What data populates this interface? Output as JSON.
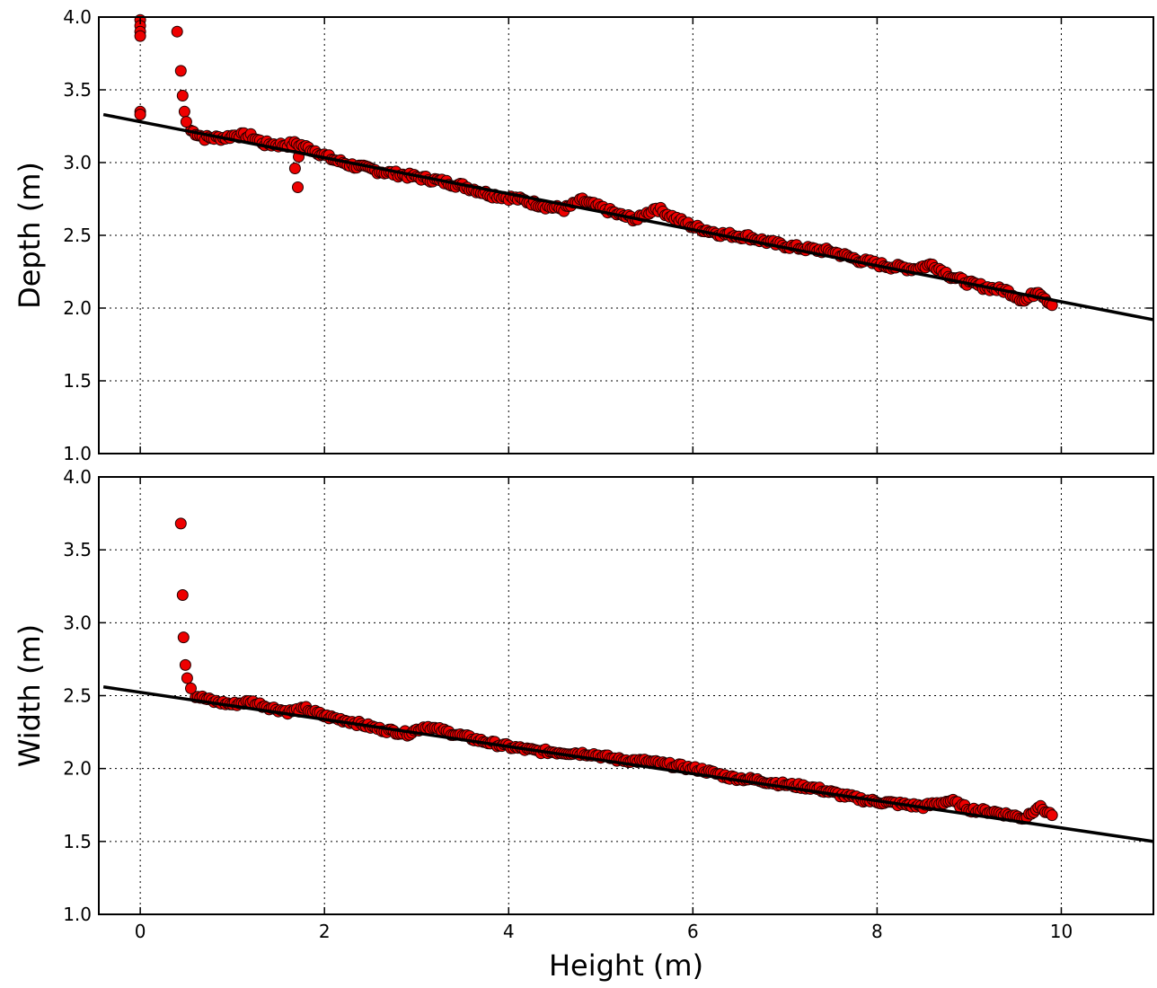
{
  "chart_data": [
    {
      "type": "scatter",
      "ylabel": "Depth (m)",
      "xlabel": "",
      "xlim": [
        -0.45,
        11.0
      ],
      "ylim": [
        1.0,
        4.0
      ],
      "xticks": [
        0,
        2,
        4,
        6,
        8,
        10
      ],
      "yticks": [
        1.0,
        1.5,
        2.0,
        2.5,
        3.0,
        3.5,
        4.0
      ],
      "show_xtick_labels": false,
      "grid": true,
      "marker_color": "#ee0000",
      "line_color": "#000000",
      "fit_line": {
        "x": [
          -0.4,
          11.0
        ],
        "y": [
          3.33,
          1.92
        ]
      },
      "outliers": [
        [
          0.0,
          3.98
        ],
        [
          0.0,
          3.94
        ],
        [
          0.0,
          3.9
        ],
        [
          0.0,
          3.87
        ],
        [
          0.0,
          3.35
        ],
        [
          0.0,
          3.33
        ],
        [
          0.4,
          3.9
        ],
        [
          0.44,
          3.63
        ],
        [
          0.46,
          3.46
        ],
        [
          0.48,
          3.35
        ],
        [
          0.5,
          3.28
        ],
        [
          1.68,
          2.96
        ],
        [
          1.71,
          2.83
        ],
        [
          1.72,
          3.04
        ]
      ],
      "trend": [
        [
          0.55,
          3.22
        ],
        [
          0.7,
          3.17
        ],
        [
          0.9,
          3.17
        ],
        [
          1.05,
          3.19
        ],
        [
          1.2,
          3.18
        ],
        [
          1.35,
          3.13
        ],
        [
          1.55,
          3.12
        ],
        [
          1.7,
          3.13
        ],
        [
          1.9,
          3.08
        ],
        [
          2.1,
          3.02
        ],
        [
          2.3,
          2.98
        ],
        [
          2.6,
          2.94
        ],
        [
          2.9,
          2.91
        ],
        [
          3.2,
          2.88
        ],
        [
          3.5,
          2.84
        ],
        [
          3.8,
          2.78
        ],
        [
          4.1,
          2.75
        ],
        [
          4.4,
          2.7
        ],
        [
          4.6,
          2.68
        ],
        [
          4.8,
          2.74
        ],
        [
          5.0,
          2.69
        ],
        [
          5.2,
          2.64
        ],
        [
          5.4,
          2.61
        ],
        [
          5.6,
          2.69
        ],
        [
          5.8,
          2.62
        ],
        [
          6.0,
          2.56
        ],
        [
          6.3,
          2.51
        ],
        [
          6.6,
          2.49
        ],
        [
          6.9,
          2.44
        ],
        [
          7.2,
          2.41
        ],
        [
          7.5,
          2.39
        ],
        [
          7.8,
          2.33
        ],
        [
          8.1,
          2.29
        ],
        [
          8.4,
          2.27
        ],
        [
          8.6,
          2.3
        ],
        [
          8.8,
          2.22
        ],
        [
          9.0,
          2.17
        ],
        [
          9.2,
          2.14
        ],
        [
          9.4,
          2.12
        ],
        [
          9.6,
          2.05
        ],
        [
          9.75,
          2.12
        ],
        [
          9.9,
          2.02
        ]
      ],
      "noise": 0.018
    },
    {
      "type": "scatter",
      "ylabel": "Width (m)",
      "xlabel": "Height (m)",
      "xlim": [
        -0.45,
        11.0
      ],
      "ylim": [
        1.0,
        4.0
      ],
      "xticks": [
        0,
        2,
        4,
        6,
        8,
        10
      ],
      "yticks": [
        1.0,
        1.5,
        2.0,
        2.5,
        3.0,
        3.5,
        4.0
      ],
      "show_xtick_labels": true,
      "grid": true,
      "marker_color": "#ee0000",
      "line_color": "#000000",
      "fit_line": {
        "x": [
          -0.4,
          11.0
        ],
        "y": [
          2.56,
          1.5
        ]
      },
      "outliers": [
        [
          0.44,
          3.68
        ],
        [
          0.46,
          3.19
        ],
        [
          0.47,
          2.9
        ],
        [
          0.49,
          2.71
        ],
        [
          0.51,
          2.62
        ],
        [
          0.55,
          2.55
        ]
      ],
      "trend": [
        [
          0.6,
          2.5
        ],
        [
          0.8,
          2.46
        ],
        [
          1.0,
          2.44
        ],
        [
          1.2,
          2.46
        ],
        [
          1.4,
          2.42
        ],
        [
          1.6,
          2.39
        ],
        [
          1.8,
          2.41
        ],
        [
          2.0,
          2.36
        ],
        [
          2.3,
          2.32
        ],
        [
          2.6,
          2.27
        ],
        [
          2.9,
          2.24
        ],
        [
          3.1,
          2.29
        ],
        [
          3.4,
          2.24
        ],
        [
          3.7,
          2.19
        ],
        [
          4.0,
          2.15
        ],
        [
          4.3,
          2.12
        ],
        [
          4.6,
          2.11
        ],
        [
          4.9,
          2.1
        ],
        [
          5.2,
          2.06
        ],
        [
          5.5,
          2.05
        ],
        [
          5.8,
          2.02
        ],
        [
          6.1,
          1.99
        ],
        [
          6.4,
          1.94
        ],
        [
          6.7,
          1.92
        ],
        [
          7.0,
          1.89
        ],
        [
          7.3,
          1.87
        ],
        [
          7.6,
          1.82
        ],
        [
          7.9,
          1.78
        ],
        [
          8.2,
          1.76
        ],
        [
          8.5,
          1.74
        ],
        [
          8.8,
          1.78
        ],
        [
          9.0,
          1.72
        ],
        [
          9.3,
          1.7
        ],
        [
          9.6,
          1.66
        ],
        [
          9.75,
          1.74
        ],
        [
          9.9,
          1.68
        ]
      ],
      "noise": 0.015
    }
  ]
}
